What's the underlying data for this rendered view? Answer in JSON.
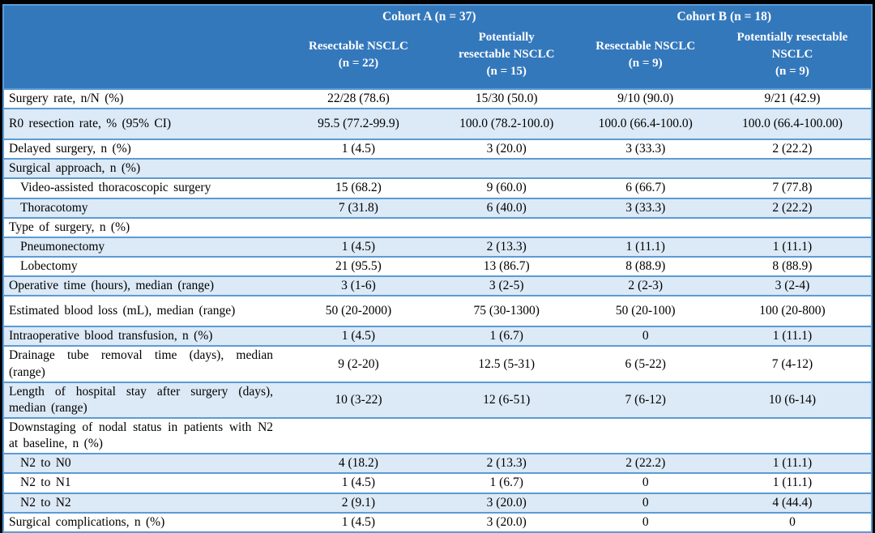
{
  "colors": {
    "header_bg": "#3478BC",
    "header_text": "#FFFFFF",
    "band_bg": "#DCE9F6",
    "separator": "#5B9BD5",
    "frame_bg": "#000000",
    "body_text": "#000000"
  },
  "table": {
    "cohorts": [
      {
        "label": "Cohort A (n = 37)"
      },
      {
        "label": "Cohort B (n = 18)"
      }
    ],
    "columns": [
      "Resectable NSCLC\n(n = 22)",
      "Potentially\nresectable NSCLC\n(n = 15)",
      "Resectable NSCLC\n(n = 9)",
      "Potentially resectable\nNSCLC\n(n = 9)"
    ],
    "rows": [
      {
        "label": "Surgery rate, n/N (%)",
        "indent": false,
        "tall": false,
        "values": [
          "22/28 (78.6)",
          "15/30 (50.0)",
          "9/10 (90.0)",
          "9/21 (42.9)"
        ]
      },
      {
        "label": "R0 resection rate, % (95% CI)",
        "indent": false,
        "tall": true,
        "values": [
          "95.5 (77.2-99.9)",
          "100.0 (78.2-100.0)",
          "100.0 (66.4-100.0)",
          "100.0 (66.4-100.00)"
        ]
      },
      {
        "label": "Delayed surgery, n (%)",
        "indent": false,
        "tall": false,
        "values": [
          "1 (4.5)",
          "3 (20.0)",
          "3 (33.3)",
          "2 (22.2)"
        ]
      },
      {
        "label": "Surgical approach, n (%)",
        "indent": false,
        "tall": false,
        "values": [
          "",
          "",
          "",
          ""
        ]
      },
      {
        "label": "Video-assisted thoracoscopic surgery",
        "indent": true,
        "tall": false,
        "values": [
          "15 (68.2)",
          "9 (60.0)",
          "6 (66.7)",
          "7 (77.8)"
        ]
      },
      {
        "label": "Thoracotomy",
        "indent": true,
        "tall": false,
        "values": [
          "7 (31.8)",
          "6 (40.0)",
          "3 (33.3)",
          "2 (22.2)"
        ]
      },
      {
        "label": "Type of surgery, n (%)",
        "indent": false,
        "tall": false,
        "values": [
          "",
          "",
          "",
          ""
        ]
      },
      {
        "label": "Pneumonectomy",
        "indent": true,
        "tall": false,
        "values": [
          "1 (4.5)",
          "2 (13.3)",
          "1 (11.1)",
          "1 (11.1)"
        ]
      },
      {
        "label": "Lobectomy",
        "indent": true,
        "tall": false,
        "values": [
          "21 (95.5)",
          "13 (86.7)",
          "8 (88.9)",
          "8 (88.9)"
        ]
      },
      {
        "label": "Operative time (hours), median (range)",
        "indent": false,
        "tall": false,
        "values": [
          "3 (1-6)",
          "3 (2-5)",
          "2 (2-3)",
          "3 (2-4)"
        ]
      },
      {
        "label": "Estimated blood loss (mL), median (range)",
        "indent": false,
        "tall": true,
        "values": [
          "50 (20-2000)",
          "75 (30-1300)",
          "50 (20-100)",
          "100 (20-800)"
        ]
      },
      {
        "label": "Intraoperative blood transfusion, n (%)",
        "indent": false,
        "tall": false,
        "values": [
          "1 (4.5)",
          "1 (6.7)",
          "0",
          "1 (11.1)"
        ]
      },
      {
        "label": "Drainage tube removal time (days), median (range)",
        "indent": false,
        "tall": true,
        "values": [
          "9 (2-20)",
          "12.5 (5-31)",
          "6 (5-22)",
          "7 (4-12)"
        ]
      },
      {
        "label": "Length of hospital stay after surgery (days), median (range)",
        "indent": false,
        "tall": true,
        "values": [
          "10 (3-22)",
          "12 (6-51)",
          "7 (6-12)",
          "10 (6-14)"
        ]
      },
      {
        "label": "Downstaging of nodal status in patients with N2 at baseline, n (%)",
        "indent": false,
        "tall": true,
        "values": [
          "",
          "",
          "",
          ""
        ]
      },
      {
        "label": "N2 to N0",
        "indent": true,
        "tall": false,
        "values": [
          "4 (18.2)",
          "2 (13.3)",
          "2 (22.2)",
          "1 (11.1)"
        ]
      },
      {
        "label": "N2 to N1",
        "indent": true,
        "tall": false,
        "values": [
          "1 (4.5)",
          "1 (6.7)",
          "0",
          "1 (11.1)"
        ]
      },
      {
        "label": "N2 to N2",
        "indent": true,
        "tall": false,
        "values": [
          "2 (9.1)",
          "3 (20.0)",
          "0",
          "4 (44.4)"
        ]
      },
      {
        "label": "Surgical complications, n (%)",
        "indent": false,
        "tall": false,
        "values": [
          "1 (4.5)",
          "3 (20.0)",
          "0",
          "0"
        ]
      }
    ]
  }
}
